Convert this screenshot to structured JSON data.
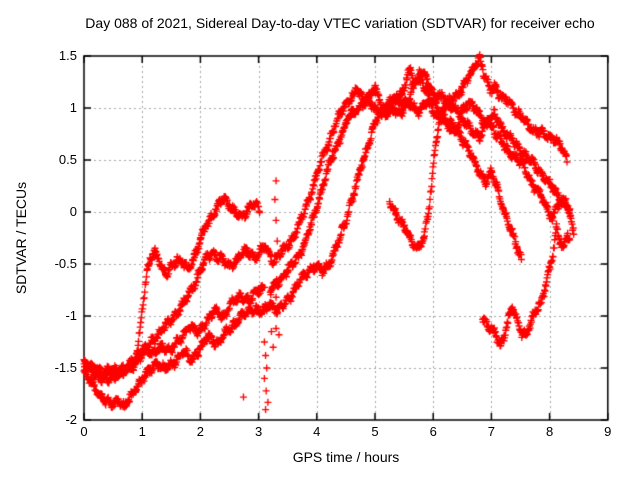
{
  "window": {
    "background": "#ffffff"
  },
  "chart_data": {
    "type": "scatter",
    "title": "Day 088 of 2021, Sidereal Day-to-day VTEC variation (SDTVAR) for receiver echo",
    "xlabel": "GPS time / hours",
    "ylabel": "SDTVAR / TECUs",
    "xlim": [
      0,
      9
    ],
    "ylim": [
      -2,
      1.5
    ],
    "xticks": {
      "values": [
        0,
        1,
        2,
        3,
        4,
        5,
        6,
        7,
        8,
        9
      ],
      "labels": [
        "0",
        "1",
        "2",
        "3",
        "4",
        "5",
        "6",
        "7",
        "8",
        "9"
      ]
    },
    "yticks": {
      "values": [
        -2,
        -1.5,
        -1,
        -0.5,
        0,
        0.5,
        1,
        1.5
      ],
      "labels": [
        "-2",
        "-1.5",
        "-1",
        "-0.5",
        "0",
        "0.5",
        "1",
        "1.5"
      ]
    },
    "grid": {
      "show": true,
      "color": "#a8a8a8",
      "dash": [
        2,
        3
      ]
    },
    "axis_color": "#000000",
    "legend": "none",
    "marker": {
      "shape": "plus",
      "color": "#ff0000",
      "size": 7
    },
    "sampling_interval_hours": 0.009,
    "scatter_noise": {
      "amp1": 0.022,
      "freq1": 47,
      "amp2": 0.014,
      "freq2": 19,
      "jitter": 0.028
    },
    "series": [
      {
        "name": "satellite-trace-1",
        "keypoints": [
          [
            0.85,
            -1.52
          ],
          [
            0.92,
            -1.3
          ],
          [
            1.0,
            -0.95
          ],
          [
            1.08,
            -0.6
          ],
          [
            1.15,
            -0.44
          ],
          [
            1.22,
            -0.36
          ],
          [
            1.3,
            -0.48
          ],
          [
            1.4,
            -0.62
          ],
          [
            1.5,
            -0.52
          ],
          [
            1.6,
            -0.44
          ],
          [
            1.7,
            -0.5
          ],
          [
            1.8,
            -0.56
          ],
          [
            1.9,
            -0.42
          ],
          [
            2.0,
            -0.27
          ],
          [
            2.12,
            -0.12
          ],
          [
            2.25,
            0.02
          ],
          [
            2.38,
            0.12
          ],
          [
            2.5,
            0.07
          ],
          [
            2.62,
            -0.01
          ],
          [
            2.72,
            -0.07
          ],
          [
            2.82,
            0.03
          ],
          [
            2.92,
            0.1
          ],
          [
            3.02,
            0.02
          ]
        ]
      },
      {
        "name": "satellite-trace-2",
        "keypoints": [
          [
            0.0,
            -1.42
          ],
          [
            0.15,
            -1.5
          ],
          [
            0.3,
            -1.55
          ],
          [
            0.45,
            -1.5
          ],
          [
            0.6,
            -1.54
          ],
          [
            0.75,
            -1.48
          ],
          [
            0.9,
            -1.4
          ],
          [
            1.05,
            -1.32
          ],
          [
            1.2,
            -1.38
          ],
          [
            1.35,
            -1.28
          ],
          [
            1.5,
            -1.33
          ],
          [
            1.65,
            -1.22
          ],
          [
            1.8,
            -1.1
          ],
          [
            1.95,
            -1.16
          ],
          [
            2.1,
            -1.05
          ],
          [
            2.25,
            -0.95
          ],
          [
            2.4,
            -1.0
          ],
          [
            2.55,
            -0.88
          ],
          [
            2.7,
            -0.8
          ],
          [
            2.85,
            -0.86
          ],
          [
            3.0,
            -0.75
          ],
          [
            3.1,
            -0.7
          ]
        ]
      },
      {
        "name": "satellite-trace-3",
        "keypoints": [
          [
            0.0,
            -1.48
          ],
          [
            0.2,
            -1.56
          ],
          [
            0.4,
            -1.62
          ],
          [
            0.6,
            -1.56
          ],
          [
            0.8,
            -1.5
          ],
          [
            1.0,
            -1.36
          ],
          [
            1.2,
            -1.22
          ],
          [
            1.4,
            -1.1
          ],
          [
            1.6,
            -0.97
          ],
          [
            1.75,
            -0.85
          ],
          [
            1.9,
            -0.68
          ],
          [
            2.05,
            -0.5
          ],
          [
            2.2,
            -0.38
          ],
          [
            2.35,
            -0.45
          ],
          [
            2.5,
            -0.52
          ],
          [
            2.65,
            -0.45
          ],
          [
            2.8,
            -0.37
          ],
          [
            2.95,
            -0.43
          ],
          [
            3.1,
            -0.33
          ],
          [
            3.25,
            -0.46
          ],
          [
            3.4,
            -0.38
          ],
          [
            3.55,
            -0.28
          ],
          [
            3.7,
            -0.12
          ],
          [
            3.85,
            0.1
          ],
          [
            4.0,
            0.35
          ],
          [
            4.15,
            0.6
          ],
          [
            4.3,
            0.82
          ],
          [
            4.45,
            1.0
          ],
          [
            4.6,
            1.12
          ],
          [
            4.7,
            1.17
          ],
          [
            4.8,
            1.05
          ],
          [
            4.9,
            1.12
          ],
          [
            5.0,
            1.2
          ],
          [
            5.1,
            1.03
          ],
          [
            5.2,
            0.95
          ],
          [
            5.3,
            1.05
          ],
          [
            5.45,
            1.12
          ],
          [
            5.55,
            1.3
          ],
          [
            5.6,
            1.39
          ],
          [
            5.68,
            1.22
          ],
          [
            5.78,
            1.28
          ],
          [
            5.88,
            1.34
          ],
          [
            5.95,
            1.18
          ],
          [
            6.05,
            1.08
          ],
          [
            6.15,
            1.14
          ],
          [
            6.3,
            1.0
          ],
          [
            6.45,
            0.95
          ],
          [
            6.6,
            1.05
          ],
          [
            6.75,
            0.97
          ],
          [
            6.9,
            0.86
          ],
          [
            7.05,
            0.93
          ],
          [
            7.2,
            0.8
          ],
          [
            7.35,
            0.68
          ],
          [
            7.5,
            0.6
          ],
          [
            7.65,
            0.5
          ],
          [
            7.8,
            0.42
          ],
          [
            7.95,
            0.3
          ],
          [
            8.1,
            0.2
          ],
          [
            8.25,
            0.08
          ],
          [
            8.35,
            0.0
          ]
        ]
      },
      {
        "name": "satellite-trace-4",
        "keypoints": [
          [
            3.2,
            -0.78
          ],
          [
            3.35,
            -0.66
          ],
          [
            3.5,
            -0.56
          ],
          [
            3.65,
            -0.46
          ],
          [
            3.8,
            -0.3
          ],
          [
            3.95,
            -0.05
          ],
          [
            4.1,
            0.25
          ],
          [
            4.25,
            0.5
          ],
          [
            4.4,
            0.72
          ],
          [
            4.55,
            0.9
          ],
          [
            4.7,
            1.0
          ],
          [
            4.85,
            1.08
          ],
          [
            5.0,
            1.0
          ],
          [
            5.15,
            0.92
          ],
          [
            5.3,
            1.0
          ],
          [
            5.45,
            0.95
          ],
          [
            5.6,
            1.04
          ],
          [
            5.75,
            0.97
          ],
          [
            5.9,
            1.05
          ],
          [
            6.05,
            0.95
          ],
          [
            6.2,
            0.85
          ],
          [
            6.35,
            0.78
          ],
          [
            6.5,
            0.88
          ],
          [
            6.65,
            0.8
          ],
          [
            6.8,
            0.72
          ],
          [
            6.95,
            0.88
          ],
          [
            7.1,
            0.74
          ],
          [
            7.25,
            0.6
          ],
          [
            7.4,
            0.54
          ],
          [
            7.55,
            0.44
          ],
          [
            7.7,
            0.28
          ],
          [
            7.85,
            0.15
          ],
          [
            7.95,
            0.05
          ],
          [
            8.05,
            -0.05
          ],
          [
            8.12,
            0.05
          ],
          [
            8.2,
            0.1
          ],
          [
            8.28,
            0.14
          ],
          [
            8.35,
            -0.05
          ],
          [
            8.42,
            -0.17
          ]
        ]
      },
      {
        "name": "satellite-trace-5",
        "keypoints": [
          [
            0.0,
            -1.55
          ],
          [
            0.15,
            -1.66
          ],
          [
            0.3,
            -1.78
          ],
          [
            0.45,
            -1.86
          ],
          [
            0.58,
            -1.8
          ],
          [
            0.7,
            -1.88
          ],
          [
            0.82,
            -1.76
          ],
          [
            0.95,
            -1.64
          ],
          [
            1.1,
            -1.55
          ],
          [
            1.25,
            -1.45
          ],
          [
            1.4,
            -1.52
          ],
          [
            1.55,
            -1.44
          ],
          [
            1.7,
            -1.34
          ],
          [
            1.85,
            -1.42
          ],
          [
            2.0,
            -1.3
          ],
          [
            2.15,
            -1.2
          ],
          [
            2.3,
            -1.27
          ],
          [
            2.45,
            -1.15
          ],
          [
            2.6,
            -1.06
          ],
          [
            2.75,
            -0.98
          ],
          [
            2.9,
            -0.92
          ],
          [
            3.05,
            -0.97
          ],
          [
            3.2,
            -0.88
          ],
          [
            3.35,
            -0.95
          ],
          [
            3.5,
            -0.85
          ],
          [
            3.65,
            -0.72
          ],
          [
            3.8,
            -0.6
          ],
          [
            3.95,
            -0.52
          ],
          [
            4.1,
            -0.58
          ],
          [
            4.25,
            -0.45
          ],
          [
            4.4,
            -0.25
          ],
          [
            4.55,
            0.02
          ],
          [
            4.7,
            0.3
          ],
          [
            4.85,
            0.6
          ],
          [
            5.0,
            0.85
          ],
          [
            5.15,
            1.0
          ],
          [
            5.3,
            1.1
          ],
          [
            5.45,
            1.04
          ],
          [
            5.6,
            1.12
          ],
          [
            5.7,
            1.25
          ],
          [
            5.78,
            1.33
          ],
          [
            5.86,
            1.2
          ],
          [
            6.0,
            1.05
          ],
          [
            6.15,
            0.95
          ],
          [
            6.3,
            0.85
          ],
          [
            6.45,
            0.75
          ],
          [
            6.6,
            0.62
          ],
          [
            6.75,
            0.42
          ],
          [
            6.9,
            0.3
          ],
          [
            7.0,
            0.38
          ],
          [
            7.1,
            0.22
          ],
          [
            7.25,
            -0.05
          ],
          [
            7.4,
            -0.28
          ],
          [
            7.52,
            -0.45
          ]
        ]
      },
      {
        "name": "satellite-trace-6",
        "keypoints": [
          [
            5.25,
            0.1
          ],
          [
            5.35,
            0.0
          ],
          [
            5.45,
            -0.1
          ],
          [
            5.55,
            -0.2
          ],
          [
            5.65,
            -0.3
          ],
          [
            5.75,
            -0.34
          ],
          [
            5.85,
            -0.24
          ],
          [
            5.92,
            0.0
          ],
          [
            5.98,
            0.3
          ],
          [
            6.03,
            0.6
          ],
          [
            6.08,
            0.8
          ],
          [
            6.15,
            0.95
          ],
          [
            6.25,
            1.05
          ],
          [
            6.35,
            1.1
          ],
          [
            6.45,
            1.15
          ],
          [
            6.55,
            1.22
          ],
          [
            6.65,
            1.35
          ],
          [
            6.73,
            1.44
          ],
          [
            6.8,
            1.46
          ],
          [
            6.88,
            1.3
          ],
          [
            6.98,
            1.18
          ],
          [
            7.06,
            1.22
          ],
          [
            7.15,
            1.1
          ],
          [
            7.3,
            1.07
          ],
          [
            7.45,
            0.95
          ],
          [
            7.6,
            0.87
          ],
          [
            7.72,
            0.79
          ],
          [
            7.85,
            0.75
          ],
          [
            7.98,
            0.73
          ],
          [
            8.1,
            0.7
          ],
          [
            8.2,
            0.62
          ],
          [
            8.3,
            0.5
          ]
        ]
      },
      {
        "name": "satellite-trace-7",
        "keypoints": [
          [
            6.85,
            -1.0
          ],
          [
            6.95,
            -1.1
          ],
          [
            7.05,
            -1.17
          ],
          [
            7.15,
            -1.28
          ],
          [
            7.22,
            -1.18
          ],
          [
            7.3,
            -1.02
          ],
          [
            7.36,
            -0.92
          ],
          [
            7.44,
            -1.05
          ],
          [
            7.52,
            -1.15
          ],
          [
            7.6,
            -1.18
          ],
          [
            7.68,
            -1.08
          ],
          [
            7.76,
            -0.95
          ],
          [
            7.84,
            -0.88
          ],
          [
            7.92,
            -0.72
          ],
          [
            8.0,
            -0.55
          ],
          [
            8.06,
            -0.42
          ],
          [
            8.12,
            -0.15
          ],
          [
            8.18,
            -0.28
          ],
          [
            8.24,
            -0.33
          ],
          [
            8.3,
            -0.2
          ],
          [
            8.35,
            -0.3
          ]
        ]
      }
    ],
    "outlier_points": [
      [
        2.74,
        -1.78
      ],
      [
        3.1,
        -1.25
      ],
      [
        3.12,
        -1.38
      ],
      [
        3.14,
        -1.5
      ],
      [
        3.1,
        -1.6
      ],
      [
        3.13,
        -1.72
      ],
      [
        3.16,
        -1.83
      ],
      [
        3.12,
        -1.9
      ],
      [
        3.22,
        -1.15
      ],
      [
        3.25,
        -1.3
      ],
      [
        3.35,
        -1.18
      ],
      [
        3.3,
        0.3
      ],
      [
        3.28,
        0.12
      ],
      [
        3.3,
        -0.08
      ],
      [
        3.32,
        -0.28
      ],
      [
        3.3,
        -0.48
      ],
      [
        3.31,
        -0.65
      ],
      [
        3.3,
        -0.82
      ],
      [
        3.32,
        -0.98
      ],
      [
        3.3,
        -1.12
      ]
    ]
  }
}
